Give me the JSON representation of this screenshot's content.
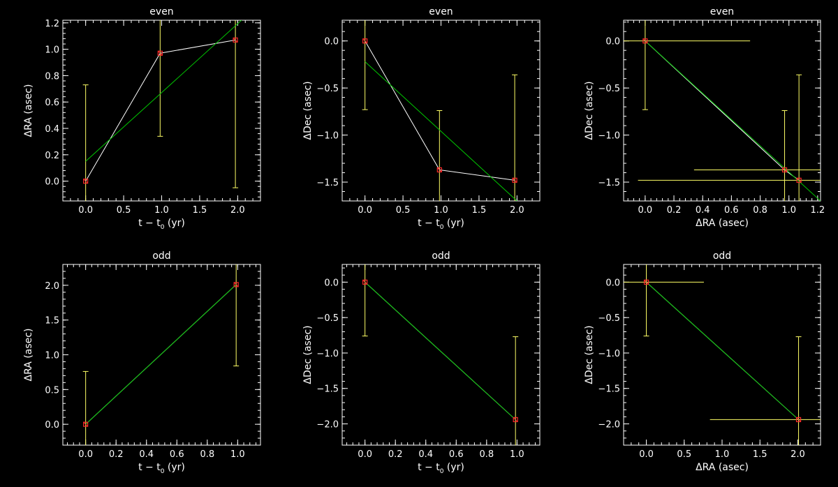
{
  "colors": {
    "background": "#000000",
    "axes": "#ffffff",
    "data_line": "#ffffff",
    "fit_line": "#00c800",
    "error_bar": "#ffff66",
    "marker": "#ff2a2a"
  },
  "chart_data": [
    {
      "type": "scatter",
      "title": "even",
      "xlabel": "t − t",
      "xlabel_sub": "0",
      "xlabel_suffix": " (yr)",
      "ylabel": "ΔRA (asec)",
      "xlim": [
        -0.3,
        2.3
      ],
      "ylim": [
        -0.15,
        1.22
      ],
      "xticks": [
        "0.0",
        "0.5",
        "1.0",
        "1.5",
        "2.0"
      ],
      "xtick_values": [
        0,
        0.5,
        1.0,
        1.5,
        2.0
      ],
      "yticks": [
        "0.0",
        "0.2",
        "0.4",
        "0.6",
        "0.8",
        "1.0",
        "1.2"
      ],
      "ytick_values": [
        0,
        0.2,
        0.4,
        0.6,
        0.8,
        1.0,
        1.2
      ],
      "x": [
        0,
        0.98,
        1.97
      ],
      "y": [
        0,
        0.97,
        1.07
      ],
      "yerr": [
        0.73,
        0.63,
        1.12
      ],
      "connect": true,
      "fit": [
        [
          0,
          0.15
        ],
        [
          2.3,
          1.35
        ]
      ]
    },
    {
      "type": "scatter",
      "title": "even",
      "xlabel": "t − t",
      "xlabel_sub": "0",
      "xlabel_suffix": " (yr)",
      "ylabel": "ΔDec (asec)",
      "xlim": [
        -0.3,
        2.3
      ],
      "ylim": [
        -1.7,
        0.22
      ],
      "xticks": [
        "0.0",
        "0.5",
        "1.0",
        "1.5",
        "2.0"
      ],
      "xtick_values": [
        0,
        0.5,
        1.0,
        1.5,
        2.0
      ],
      "yticks": [
        "0.0",
        "−0.5",
        "−1.0",
        "−1.5"
      ],
      "ytick_values": [
        0,
        -0.5,
        -1.0,
        -1.5
      ],
      "x": [
        0,
        0.98,
        1.97
      ],
      "y": [
        0,
        -1.37,
        -1.48
      ],
      "yerr": [
        0.73,
        0.63,
        1.12
      ],
      "connect": true,
      "fit": [
        [
          0,
          -0.22
        ],
        [
          2.0,
          -1.7
        ]
      ]
    },
    {
      "type": "scatter",
      "title": "even",
      "xlabel": "ΔRA (asec)",
      "xlabel_sub": "",
      "xlabel_suffix": "",
      "ylabel": "ΔDec (asec)",
      "xlim": [
        -0.15,
        1.22
      ],
      "ylim": [
        -1.7,
        0.22
      ],
      "xticks": [
        "0.0",
        "0.2",
        "0.4",
        "0.6",
        "0.8",
        "1.0",
        "1.2"
      ],
      "xtick_values": [
        0,
        0.2,
        0.4,
        0.6,
        0.8,
        1.0,
        1.2
      ],
      "yticks": [
        "0.0",
        "−0.5",
        "−1.0",
        "−1.5"
      ],
      "ytick_values": [
        0,
        -0.5,
        -1.0,
        -1.5
      ],
      "x": [
        0,
        0.97,
        1.07
      ],
      "y": [
        0,
        -1.37,
        -1.48
      ],
      "xerr": [
        0.73,
        0.63,
        1.12
      ],
      "yerr": [
        0.73,
        0.63,
        1.12
      ],
      "connect": true,
      "fit": [
        [
          0,
          0
        ],
        [
          1.22,
          -1.7
        ]
      ]
    },
    {
      "type": "scatter",
      "title": "odd",
      "xlabel": "t − t",
      "xlabel_sub": "0",
      "xlabel_suffix": " (yr)",
      "ylabel": "ΔRA (asec)",
      "xlim": [
        -0.15,
        1.15
      ],
      "ylim": [
        -0.3,
        2.3
      ],
      "xticks": [
        "0.0",
        "0.2",
        "0.4",
        "0.6",
        "0.8",
        "1.0"
      ],
      "xtick_values": [
        0,
        0.2,
        0.4,
        0.6,
        0.8,
        1.0
      ],
      "yticks": [
        "0.0",
        "0.5",
        "1.0",
        "1.5",
        "2.0"
      ],
      "ytick_values": [
        0,
        0.5,
        1.0,
        1.5,
        2.0
      ],
      "x": [
        0,
        0.99
      ],
      "y": [
        0,
        2.01
      ],
      "yerr": [
        0.76,
        1.17
      ],
      "connect": true,
      "fit": [
        [
          0,
          0
        ],
        [
          0.99,
          2.01
        ]
      ]
    },
    {
      "type": "scatter",
      "title": "odd",
      "xlabel": "t − t",
      "xlabel_sub": "0",
      "xlabel_suffix": " (yr)",
      "ylabel": "ΔDec (asec)",
      "xlim": [
        -0.15,
        1.15
      ],
      "ylim": [
        -2.3,
        0.25
      ],
      "xticks": [
        "0.0",
        "0.2",
        "0.4",
        "0.6",
        "0.8",
        "1.0"
      ],
      "xtick_values": [
        0,
        0.2,
        0.4,
        0.6,
        0.8,
        1.0
      ],
      "yticks": [
        "0.0",
        "−0.5",
        "−1.0",
        "−1.5",
        "−2.0"
      ],
      "ytick_values": [
        0,
        -0.5,
        -1.0,
        -1.5,
        -2.0
      ],
      "x": [
        0,
        0.99
      ],
      "y": [
        0,
        -1.94
      ],
      "yerr": [
        0.76,
        1.17
      ],
      "connect": true,
      "fit": [
        [
          0,
          0
        ],
        [
          0.99,
          -1.94
        ]
      ]
    },
    {
      "type": "scatter",
      "title": "odd",
      "xlabel": "ΔRA (asec)",
      "xlabel_sub": "",
      "xlabel_suffix": "",
      "ylabel": "ΔDec (asec)",
      "xlim": [
        -0.3,
        2.3
      ],
      "ylim": [
        -2.3,
        0.25
      ],
      "xticks": [
        "0.0",
        "0.5",
        "1.0",
        "1.5",
        "2.0"
      ],
      "xtick_values": [
        0,
        0.5,
        1.0,
        1.5,
        2.0
      ],
      "yticks": [
        "0.0",
        "−0.5",
        "−1.0",
        "−1.5",
        "−2.0"
      ],
      "ytick_values": [
        0,
        -0.5,
        -1.0,
        -1.5,
        -2.0
      ],
      "x": [
        0,
        2.01
      ],
      "y": [
        0,
        -1.94
      ],
      "xerr": [
        0.76,
        1.17
      ],
      "yerr": [
        0.76,
        1.17
      ],
      "connect": true,
      "fit": [
        [
          0,
          0
        ],
        [
          2.01,
          -1.94
        ]
      ]
    }
  ]
}
